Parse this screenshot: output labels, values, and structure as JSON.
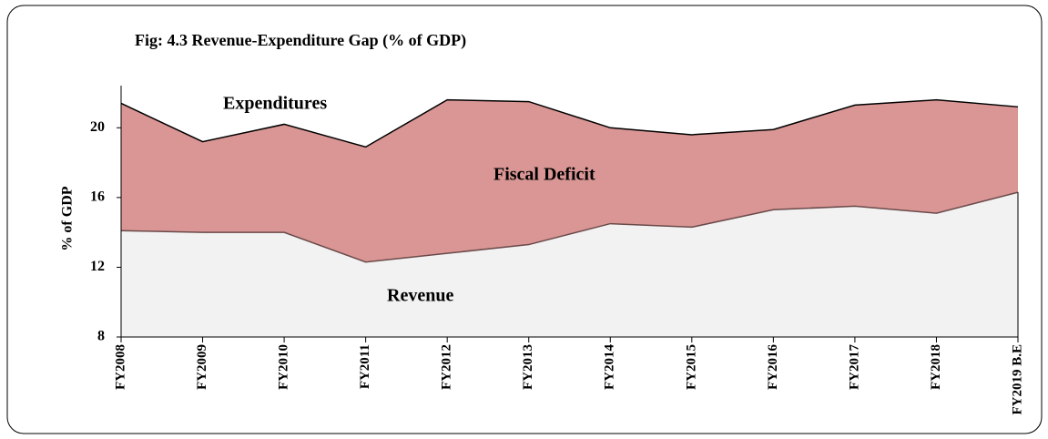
{
  "chart_data": {
    "type": "area",
    "title": "Fig: 4.3 Revenue-Expenditure Gap (% of GDP)",
    "y_label": "% of GDP",
    "categories": [
      "FY2008",
      "FY2009",
      "FY2010",
      "FY2011",
      "FY2012",
      "FY2013",
      "FY2014",
      "FY2015",
      "FY2016",
      "FY2017",
      "FY2018",
      "FY2019 B.E"
    ],
    "series": [
      {
        "name": "Expenditures",
        "color": "#d99694",
        "values": [
          21.4,
          19.2,
          20.2,
          18.9,
          21.6,
          21.5,
          20.0,
          19.6,
          19.9,
          21.3,
          21.6,
          21.2
        ]
      },
      {
        "name": "Revenue",
        "color": "#f2f2f2",
        "values": [
          14.1,
          14.0,
          14.0,
          12.3,
          12.8,
          13.3,
          14.5,
          14.3,
          15.3,
          15.5,
          15.1,
          16.3
        ]
      }
    ],
    "annotations": [
      "Fiscal Deficit"
    ],
    "ylim": [
      8,
      22
    ],
    "yticks": [
      8,
      12,
      16,
      20
    ]
  }
}
